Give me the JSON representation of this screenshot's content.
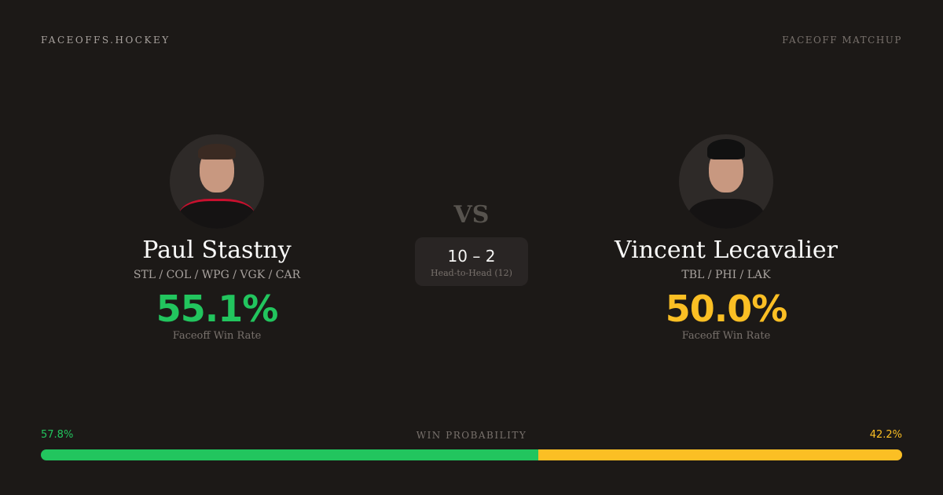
{
  "header": {
    "brand": "FACEOFFS.HOCKEY",
    "label": "FACEOFF MATCHUP"
  },
  "players": [
    {
      "name": "Paul Stastny",
      "teams": "STL / COL / WPG / VGK / CAR",
      "win_rate": "55.1%",
      "win_rate_label": "Faceoff Win Rate",
      "color": "#22c55e"
    },
    {
      "name": "Vincent Lecavalier",
      "teams": "TBL / PHI / LAK",
      "win_rate": "50.0%",
      "win_rate_label": "Faceoff Win Rate",
      "color": "#fbbf24"
    }
  ],
  "vs": "VS",
  "head_to_head": {
    "score": "10 – 2",
    "label": "Head-to-Head (12)"
  },
  "win_probability": {
    "label": "WIN PROBABILITY",
    "left": "57.8%",
    "right": "42.2%",
    "left_value": 57.8,
    "right_value": 42.2
  }
}
